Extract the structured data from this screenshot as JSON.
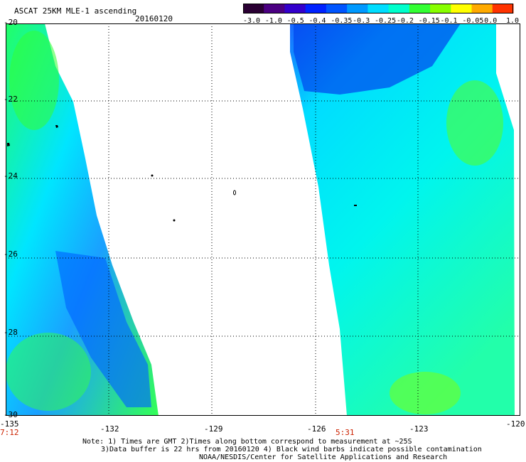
{
  "header": {
    "title": "ASCAT 25KM MLE-1 ascending",
    "date": "20160120"
  },
  "colorbar": {
    "labels": [
      "-3.0",
      "-1.0",
      "-0.5",
      "-0.4",
      "-0.35",
      "-0.3",
      "-0.25",
      "-0.2",
      "-0.15",
      "-0.1",
      "-0.05",
      "0.0",
      "1.0"
    ],
    "colors": [
      "#2a0033",
      "#4b0082",
      "#3300cc",
      "#0022ff",
      "#0055ff",
      "#0099ff",
      "#00ddff",
      "#00ffcc",
      "#33ff33",
      "#88ff00",
      "#ffff00",
      "#ffaa00",
      "#ff3300"
    ]
  },
  "map": {
    "lat_labels": [
      "-20",
      "-22",
      "-24",
      "-26",
      "-28",
      "-30"
    ],
    "lon_labels": [
      "-135",
      "-132",
      "-129",
      "-126",
      "-123",
      "-120"
    ],
    "time_labels": [
      "7:12",
      "5:31"
    ],
    "lat_range": [
      -30,
      -20
    ],
    "lon_range": [
      -135,
      -120
    ]
  },
  "notes": {
    "line1": "Note: 1) Times are GMT 2)Times along bottom correspond to measurement at ~25S",
    "line2": "3)Data buffer is 22 hrs from 20160120 4) Black wind barbs indicate possible contamination",
    "line3": "NOAA/NESDIS/Center for Satellite Applications and Research"
  }
}
